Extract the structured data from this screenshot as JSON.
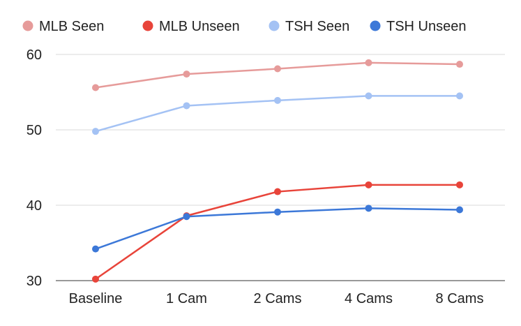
{
  "chart_data": {
    "type": "line",
    "title": "",
    "xlabel": "",
    "ylabel": "",
    "categories": [
      "Baseline",
      "1 Cam",
      "2 Cams",
      "4 Cams",
      "8 Cams"
    ],
    "ylim": [
      30,
      60
    ],
    "yticks": [
      30,
      40,
      50,
      60
    ],
    "grid": true,
    "legend_position": "top",
    "series": [
      {
        "name": "MLB Seen",
        "color": "#e69b9a",
        "values": [
          55.6,
          57.4,
          58.1,
          58.9,
          58.7
        ]
      },
      {
        "name": "MLB Unseen",
        "color": "#e8443a",
        "values": [
          30.2,
          38.6,
          41.8,
          42.7,
          42.7
        ]
      },
      {
        "name": "TSH Seen",
        "color": "#a4c2f4",
        "values": [
          49.8,
          53.2,
          53.9,
          54.5,
          54.5
        ]
      },
      {
        "name": "TSH Unseen",
        "color": "#3c78d8",
        "values": [
          34.2,
          38.5,
          39.1,
          39.6,
          39.4
        ]
      }
    ]
  }
}
